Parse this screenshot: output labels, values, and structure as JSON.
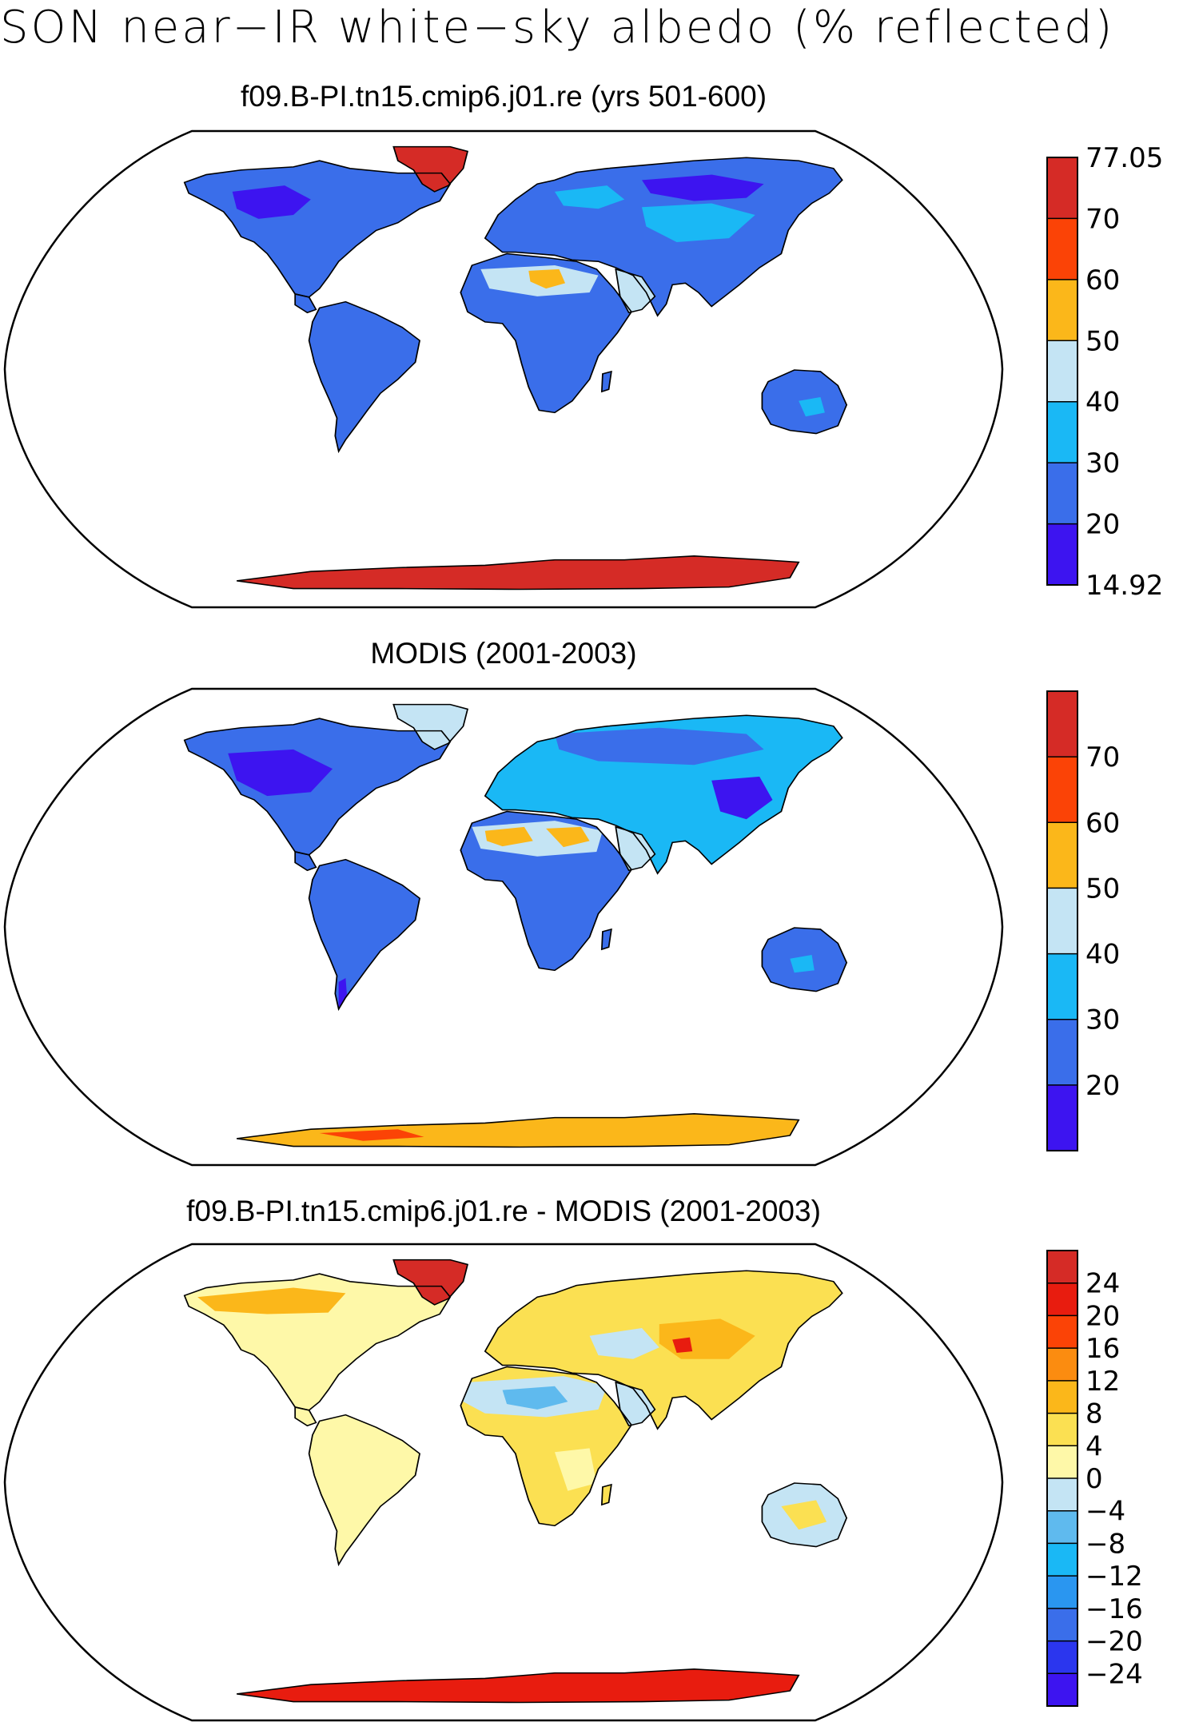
{
  "title": "SON near−IR white−sky albedo (% reflected)",
  "panels": [
    {
      "id": "model",
      "title": "f09.B-PI.tn15.cmip6.j01.re (yrs 501-600)",
      "colorbar": {
        "colors": [
          "#3d14f0",
          "#3a6eea",
          "#1ab8f5",
          "#c4e4f4",
          "#fbb71a",
          "#fb4306",
          "#d52b26"
        ],
        "labels": [
          "14.92",
          "20",
          "30",
          "40",
          "50",
          "60",
          "70",
          "77.05"
        ]
      }
    },
    {
      "id": "obs",
      "title": "MODIS (2001-2003)",
      "colorbar": {
        "colors": [
          "#3d14f0",
          "#3a6eea",
          "#1ab8f5",
          "#c4e4f4",
          "#fbb71a",
          "#fb4306",
          "#d52b26"
        ],
        "labels": [
          "",
          "20",
          "30",
          "40",
          "50",
          "60",
          "70",
          ""
        ]
      }
    },
    {
      "id": "diff",
      "title": "f09.B-PI.tn15.cmip6.j01.re - MODIS (2001-2003)",
      "colorbar": {
        "colors": [
          "#3d14f0",
          "#2b36ee",
          "#3a6eea",
          "#2a96f0",
          "#1ab8f5",
          "#5fbaee",
          "#c4e4f4",
          "#fef8a8",
          "#fbe052",
          "#fbb71a",
          "#fb8c10",
          "#fb4306",
          "#e81c0f",
          "#d52b26"
        ],
        "labels": [
          "",
          "−24",
          "−20",
          "−16",
          "−12",
          "−8",
          "−4",
          "0",
          "4",
          "8",
          "12",
          "16",
          "20",
          "24",
          ""
        ]
      }
    }
  ]
}
